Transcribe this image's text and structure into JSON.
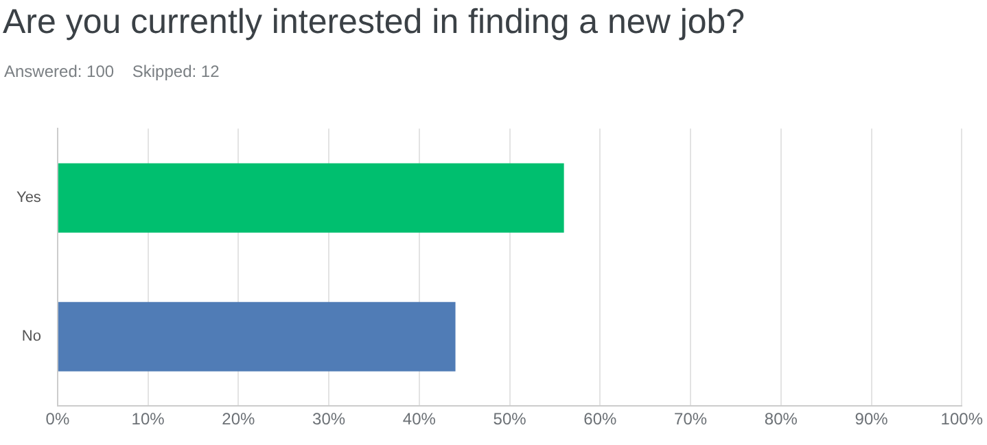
{
  "chart_data": {
    "type": "bar",
    "orientation": "horizontal",
    "title": "Are you currently interested in finding a new job?",
    "subtitle": "Answered: 100    Skipped: 12",
    "categories": [
      "Yes",
      "No"
    ],
    "values": [
      56,
      44
    ],
    "colors": [
      "#00bf6f",
      "#507cb6"
    ],
    "xlim": [
      0,
      100
    ],
    "xticks": [
      {
        "value": 0,
        "label": "0%"
      },
      {
        "value": 10,
        "label": "10%"
      },
      {
        "value": 20,
        "label": "20%"
      },
      {
        "value": 30,
        "label": "30%"
      },
      {
        "value": 40,
        "label": "40%"
      },
      {
        "value": 50,
        "label": "50%"
      },
      {
        "value": 60,
        "label": "60%"
      },
      {
        "value": 70,
        "label": "70%"
      },
      {
        "value": 80,
        "label": "80%"
      },
      {
        "value": 90,
        "label": "90%"
      },
      {
        "value": 100,
        "label": "100%"
      }
    ],
    "grid": "x",
    "legend": false
  }
}
